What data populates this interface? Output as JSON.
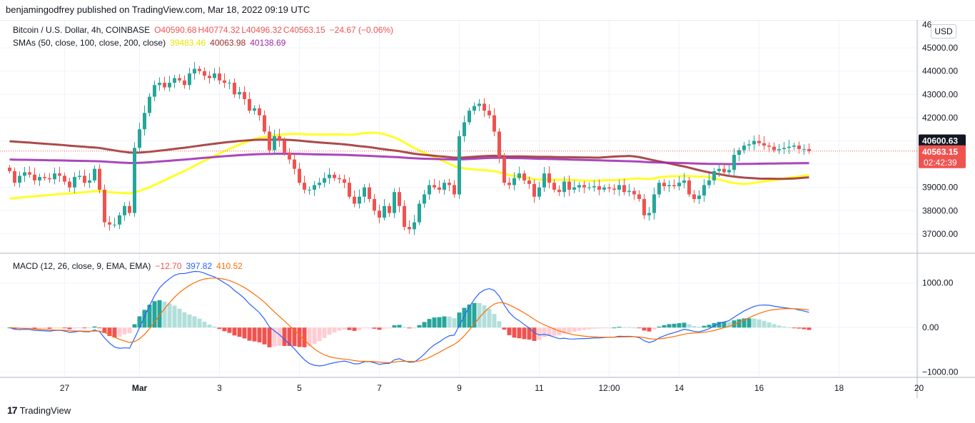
{
  "header": {
    "publisher_line": "benjamingodfrey published on TradingView.com, Mar 18, 2022 09:19 UTC"
  },
  "legend": {
    "symbol": "Bitcoin / U.S. Dollar, 4h, COINBASE",
    "open": "O40590.68",
    "high": "H40774.32",
    "low": "L40496.32",
    "close": "C40563.15",
    "change": "−24.67 (−0.06%)",
    "sma_label": "SMAs (50, close, 100, close, 200, close)",
    "sma50": "39483.46",
    "sma100": "40063.98",
    "sma200": "40138.69",
    "macd_label": "MACD (12, 26, close, 9, EMA, EMA)",
    "macd_hist": "−12.70",
    "macd_line": "397.82",
    "macd_signal": "410.52"
  },
  "currency_button": "USD",
  "price_badges": {
    "high_tag": "40600.63",
    "last_price": "40563.15",
    "countdown": "02:42:39"
  },
  "footer": {
    "brand": "TradingView",
    "logo_glyph": "17"
  },
  "colors": {
    "up": "#26a69a",
    "down": "#ef5350",
    "hist_up_strong": "#26a69a",
    "hist_up_weak": "#b2dfdb",
    "hist_down_strong": "#ef5350",
    "hist_down_weak": "#ffcdd2",
    "sma50": "#ffff00",
    "sma100": "#9c2b2b",
    "sma200": "#9c27b0",
    "macd_line": "#2962ff",
    "signal_line": "#ff6d00",
    "grid": "#f0f3fa"
  },
  "chart_data": [
    {
      "type": "candlestick",
      "title": "Bitcoin / U.S. Dollar, 4h, COINBASE",
      "ylim": [
        36200,
        46200
      ],
      "y_ticks": [
        "45000.00",
        "44000.00",
        "43000.00",
        "42000.00",
        "41000.00",
        "40000.00",
        "39000.00",
        "38000.00",
        "37000.00"
      ],
      "y_tick_values": [
        45000,
        44000,
        43000,
        42000,
        41000,
        40000,
        39000,
        38000,
        37000
      ],
      "x_ticks": [
        "27",
        "Mar",
        "3",
        "5",
        "7",
        "9",
        "11",
        "12:00",
        "14",
        "16",
        "18",
        "20"
      ],
      "x_tick_index": [
        11,
        26,
        42,
        58,
        74,
        90,
        106,
        120,
        134,
        150,
        166,
        182
      ],
      "top_axis_partial_label": "46",
      "closes": [
        39700,
        39200,
        39500,
        39650,
        39550,
        39300,
        39450,
        39400,
        39350,
        39600,
        39500,
        39250,
        39000,
        39450,
        39500,
        39200,
        39300,
        39800,
        38900,
        37500,
        37400,
        37400,
        37800,
        38200,
        37900,
        40700,
        41500,
        42200,
        42900,
        43400,
        43500,
        43300,
        43500,
        43700,
        43600,
        43400,
        43900,
        44100,
        44000,
        43800,
        43700,
        43900,
        43600,
        43500,
        43500,
        43000,
        43100,
        42800,
        42300,
        42400,
        42100,
        41400,
        40600,
        41200,
        41000,
        40500,
        40200,
        39800,
        39200,
        38900,
        38900,
        39100,
        39200,
        39400,
        39550,
        39400,
        39350,
        39200,
        38600,
        38300,
        38600,
        39000,
        38500,
        38000,
        37700,
        38200,
        37900,
        38800,
        38200,
        37300,
        37200,
        37500,
        38300,
        38700,
        39100,
        39000,
        38900,
        39200,
        39100,
        38700,
        41200,
        41800,
        42300,
        42500,
        42600,
        42300,
        42100,
        41400,
        40300,
        39200,
        39100,
        39400,
        39600,
        39300,
        39150,
        38600,
        39000,
        39600,
        39200,
        38900,
        38800,
        39250,
        38900,
        39000,
        39100,
        39000,
        39000,
        39050,
        38900,
        39000,
        38950,
        38900,
        39100,
        38800,
        38850,
        38700,
        38500,
        37800,
        37900,
        38700,
        39200,
        39050,
        39100,
        39050,
        39200,
        39300,
        38700,
        38500,
        38650,
        39100,
        39300,
        39700,
        39800,
        39650,
        39750,
        40400,
        40600,
        40800,
        40850,
        41000,
        40900,
        40800,
        40750,
        40600,
        40650,
        40700,
        40750,
        40800,
        40650,
        40650,
        40563
      ],
      "series_overlay": [
        {
          "name": "SMA 50",
          "start_value": 38500,
          "end_value": 39483.46
        },
        {
          "name": "SMA 100",
          "start_value": 41000,
          "end_value": 40063.98
        },
        {
          "name": "SMA 200",
          "start_value": 40200,
          "end_value": 40138.69
        }
      ]
    },
    {
      "type": "bar",
      "title": "MACD (12, 26, close, 9, EMA, EMA)",
      "ylim": [
        -1100,
        1650
      ],
      "y_ticks": [
        "1000.00",
        "0.00",
        "−1000.00"
      ],
      "y_tick_values": [
        1000,
        0,
        -1000
      ],
      "last_values": {
        "histogram": -12.7,
        "macd": 397.82,
        "signal": 410.52
      }
    }
  ]
}
